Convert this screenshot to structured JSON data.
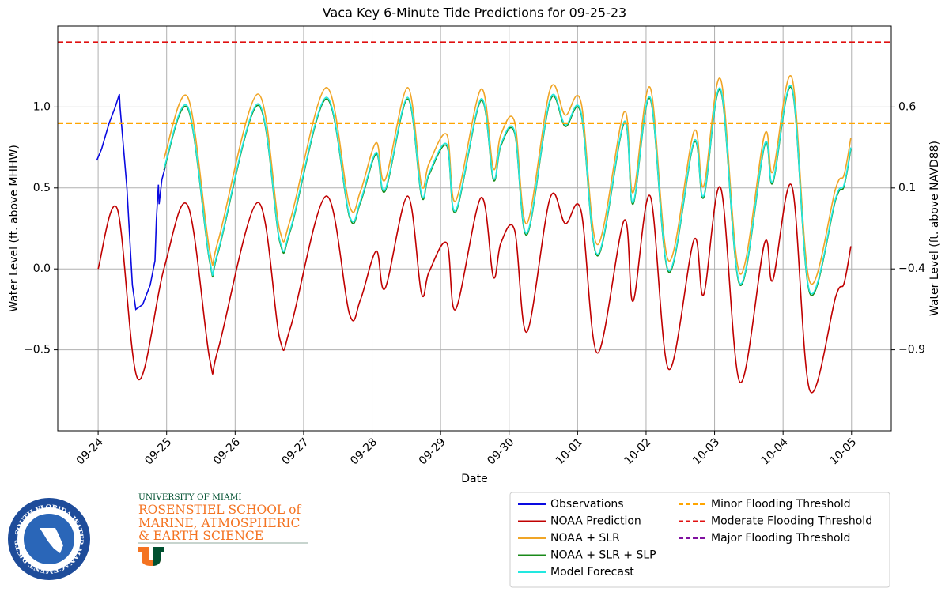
{
  "chart_data": {
    "type": "line",
    "title": "Vaca Key 6-Minute Tide Predictions for 09-25-23",
    "xlabel": "Date",
    "ylabel": "Water Level (ft. above MHHW)",
    "y2label": "Water Level (ft. above NAVD88)",
    "xlim": [
      -0.59,
      11.58
    ],
    "xticks": [
      {
        "value": 0,
        "label": "09-24"
      },
      {
        "value": 1,
        "label": "09-25"
      },
      {
        "value": 2,
        "label": "09-26"
      },
      {
        "value": 3,
        "label": "09-27"
      },
      {
        "value": 4,
        "label": "09-28"
      },
      {
        "value": 5,
        "label": "09-29"
      },
      {
        "value": 6,
        "label": "09-30"
      },
      {
        "value": 7,
        "label": "10-01"
      },
      {
        "value": 8,
        "label": "10-02"
      },
      {
        "value": 9,
        "label": "10-03"
      },
      {
        "value": 10,
        "label": "10-04"
      },
      {
        "value": 11,
        "label": "10-05"
      }
    ],
    "ylim": [
      -1.0,
      1.5
    ],
    "yticks": [
      {
        "value": 1.0,
        "label": "1.0"
      },
      0.5,
      {
        "value": 0.0,
        "label": "0.0"
      },
      {
        "value": -0.5,
        "label": "−0.5"
      }
    ],
    "y2lim": [
      -1.4,
      1.1
    ],
    "y2ticks": [
      0.6,
      0.1,
      {
        "value": -0.4,
        "label": "−0.4"
      },
      {
        "value": -0.9,
        "label": "−0.9"
      }
    ],
    "grid": true,
    "legend": "lower right",
    "x": [
      0.0,
      0.28,
      0.58,
      0.96,
      1.31,
      1.63,
      1.75,
      2.33,
      2.65,
      2.81,
      3.33,
      3.67,
      3.83,
      4.06,
      4.19,
      4.52,
      4.72,
      4.83,
      5.09,
      5.22,
      5.59,
      5.77,
      5.88,
      6.08,
      6.26,
      6.6,
      6.82,
      7.05,
      7.29,
      7.68,
      7.81,
      8.06,
      8.33,
      8.7,
      8.84,
      9.09,
      9.37,
      9.73,
      9.85,
      10.13,
      10.39,
      10.77,
      10.89,
      10.99
    ],
    "series": [
      {
        "name": "Observations",
        "color": "#0a0ae0",
        "x": [
          -0.02,
          0.05,
          0.16,
          0.25,
          0.31,
          0.32,
          0.36,
          0.42,
          0.46,
          0.5,
          0.55,
          0.65,
          0.76,
          0.83,
          0.85,
          0.88,
          0.89,
          0.93,
          0.98
        ],
        "values": [
          0.67,
          0.74,
          0.9,
          1.0,
          1.08,
          1.0,
          0.8,
          0.5,
          0.2,
          -0.1,
          -0.25,
          -0.22,
          -0.1,
          0.05,
          0.3,
          0.52,
          0.4,
          0.55,
          0.63
        ]
      },
      {
        "name": "NOAA Prediction",
        "color": "#c00000",
        "values": [
          0,
          0.37,
          -0.68,
          0,
          0.39,
          -0.56,
          -0.5,
          0.41,
          -0.43,
          -0.36,
          0.45,
          -0.28,
          -0.19,
          0.11,
          -0.12,
          0.45,
          -0.15,
          -0.02,
          0.16,
          -0.25,
          0.44,
          -0.05,
          0.16,
          0.24,
          -0.39,
          0.44,
          0.28,
          0.36,
          -0.52,
          0.3,
          -0.2,
          0.45,
          -0.62,
          0.18,
          -0.16,
          0.5,
          -0.7,
          0.16,
          -0.07,
          0.51,
          -0.75,
          -0.17,
          -0.09,
          0.14
        ]
      },
      {
        "name": "NOAA + SLR",
        "color": "#f0a526",
        "values": [
          null,
          null,
          null,
          0.68,
          1.06,
          0.11,
          0.17,
          1.08,
          0.24,
          0.31,
          1.12,
          0.39,
          0.48,
          0.78,
          0.55,
          1.12,
          0.52,
          0.65,
          0.83,
          0.42,
          1.11,
          0.62,
          0.83,
          0.91,
          0.28,
          1.11,
          0.95,
          1.03,
          0.15,
          0.97,
          0.47,
          1.12,
          0.05,
          0.85,
          0.51,
          1.17,
          -0.03,
          0.83,
          0.6,
          1.18,
          -0.08,
          0.5,
          0.58,
          0.81
        ]
      },
      {
        "name": "NOAA + SLR + SLP",
        "color": "#1a8a1a",
        "values": [
          null,
          null,
          null,
          0.61,
          0.99,
          0.04,
          0.1,
          1.01,
          0.17,
          0.24,
          1.05,
          0.32,
          0.41,
          0.71,
          0.48,
          1.05,
          0.45,
          0.58,
          0.76,
          0.35,
          1.04,
          0.55,
          0.76,
          0.84,
          0.21,
          1.04,
          0.88,
          0.96,
          0.08,
          0.9,
          0.4,
          1.05,
          -0.02,
          0.78,
          0.44,
          1.1,
          -0.1,
          0.76,
          0.53,
          1.11,
          -0.15,
          0.43,
          0.51,
          0.74
        ]
      },
      {
        "name": "Model Forecast",
        "color": "#22e8e0",
        "values": [
          null,
          null,
          null,
          0.62,
          1.0,
          0.05,
          0.11,
          1.02,
          0.18,
          0.25,
          1.06,
          0.33,
          0.42,
          0.72,
          0.49,
          1.06,
          0.46,
          0.59,
          0.77,
          0.36,
          1.05,
          0.56,
          0.77,
          0.85,
          0.22,
          1.05,
          0.89,
          0.97,
          0.09,
          0.91,
          0.41,
          1.06,
          -0.01,
          0.79,
          0.45,
          1.11,
          -0.09,
          0.77,
          0.54,
          1.12,
          -0.14,
          0.44,
          0.52,
          0.75
        ]
      }
    ],
    "thresholds": [
      {
        "name": "Minor Flooding Threshold",
        "color": "#ffa500",
        "value": 0.9
      },
      {
        "name": "Moderate Flooding Threshold",
        "color": "#e01010",
        "value": 1.4
      },
      {
        "name": "Major Flooding Threshold",
        "color": "#8010a0"
      }
    ]
  },
  "logos": {
    "district": "SOUTH FLORIDA WATER MANAGEMENT DISTRICT",
    "university": "UNIVERSITY OF MIAMI",
    "school": [
      "ROSENSTIEL SCHOOL of",
      "MARINE, ATMOSPHERIC",
      "& EARTH SCIENCE"
    ]
  }
}
